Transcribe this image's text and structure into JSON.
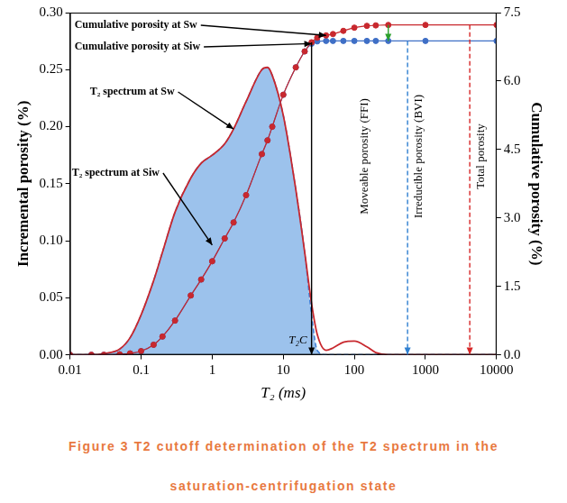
{
  "chart_data": {
    "type": "line",
    "caption": "Figure 3 T2 cutoff determination of the T2 spectrum in the saturation-centrifugation state",
    "x_label": "T₂ (ms)",
    "y_label": "Incremental porosity (%)",
    "y2_label": "Cumulative porosity (%)",
    "log": "x",
    "grid": false,
    "x": [
      0.01,
      0.02,
      0.03,
      0.05,
      0.07,
      0.1,
      0.15,
      0.2,
      0.3,
      0.5,
      0.7,
      1,
      1.5,
      2,
      3,
      5,
      6,
      7,
      10,
      15,
      20,
      25,
      30,
      40,
      50,
      70,
      100,
      150,
      200,
      300,
      1000,
      10000
    ],
    "xlim": [
      0.01,
      10000
    ],
    "xticks": [
      0.01,
      0.1,
      1,
      10,
      100,
      1000,
      10000
    ],
    "ylim": [
      0,
      0.3
    ],
    "yticks": [
      {
        "value": 0,
        "label": "0.00"
      },
      0.05,
      {
        "value": 0.1,
        "label": "0.10"
      },
      0.15,
      {
        "value": 0.2,
        "label": "0.20"
      },
      0.25,
      {
        "value": 0.3,
        "label": "0.30"
      }
    ],
    "y2lim": [
      0,
      7.5
    ],
    "y2ticks": [
      {
        "value": 0,
        "label": "0.0"
      },
      1.5,
      {
        "value": 3,
        "label": "3.0"
      },
      4.5,
      {
        "value": 6,
        "label": "6.0"
      },
      7.5
    ],
    "series": [
      {
        "name": "T₂ spectrum at Sw",
        "type": "line",
        "color": "#c8282e",
        "line_style": "solid",
        "values": [
          0,
          0,
          0.001,
          0.005,
          0.015,
          0.035,
          0.065,
          0.09,
          0.125,
          0.155,
          0.168,
          0.175,
          0.185,
          0.198,
          0.222,
          0.25,
          0.252,
          0.245,
          0.21,
          0.145,
          0.09,
          0.045,
          0.018,
          0.004,
          0.006,
          0.011,
          0.012,
          0.007,
          0.002,
          0,
          0,
          0
        ]
      },
      {
        "name": "T₂ spectrum at Siw",
        "type": "area",
        "color": "#9cc2ec",
        "line_style": "dashed",
        "values": [
          0,
          0,
          0.001,
          0.005,
          0.015,
          0.035,
          0.065,
          0.09,
          0.125,
          0.155,
          0.168,
          0.175,
          0.185,
          0.198,
          0.222,
          0.25,
          0.252,
          0.245,
          0.21,
          0.145,
          0.09,
          0.035,
          0.004,
          0,
          0,
          0,
          0,
          0,
          0,
          0,
          0,
          0
        ]
      },
      {
        "name": "Cumulative porosity at Sw",
        "type": "line",
        "axis": "y2",
        "color": "#c8282e",
        "marker": "circle",
        "line_style": "solid",
        "values": [
          0,
          0,
          0,
          0.01,
          0.03,
          0.08,
          0.22,
          0.4,
          0.75,
          1.3,
          1.65,
          2.05,
          2.55,
          2.9,
          3.5,
          4.4,
          4.7,
          5.0,
          5.7,
          6.3,
          6.65,
          6.85,
          6.95,
          7.0,
          7.03,
          7.1,
          7.17,
          7.21,
          7.22,
          7.23,
          7.23,
          7.23
        ]
      },
      {
        "name": "Cumulative porosity at Siw",
        "type": "line",
        "axis": "y2",
        "color": "#3f6fc6",
        "marker": "circle",
        "line_style": "solid",
        "values": [
          0,
          0,
          0,
          0.01,
          0.03,
          0.08,
          0.22,
          0.4,
          0.75,
          1.3,
          1.65,
          2.05,
          2.55,
          2.9,
          3.5,
          4.4,
          4.7,
          5.0,
          5.7,
          6.3,
          6.65,
          6.82,
          6.87,
          6.88,
          6.88,
          6.88,
          6.88,
          6.88,
          6.88,
          6.88,
          6.88,
          6.88
        ]
      }
    ],
    "annotations": [
      {
        "text": "T₂C",
        "x": 25,
        "y_from": 6.85,
        "y_to": 0,
        "color": "#000000",
        "line_style": "solid"
      },
      {
        "text": "Moveable porosity (FFI)",
        "x": 300,
        "y_from": 7.23,
        "y_to": 6.88,
        "color": "#2ca02c",
        "line_style": "solid"
      },
      {
        "text": "Irreducible porosity (BVI)",
        "x": 560,
        "y_from": 6.88,
        "y_to": 0,
        "color": "#2f7fd0",
        "line_style": "dashed"
      },
      {
        "text": "Total porosity",
        "x": 4200,
        "y_from": 7.23,
        "y_to": 0,
        "color": "#d62728",
        "line_style": "dashed"
      }
    ]
  }
}
